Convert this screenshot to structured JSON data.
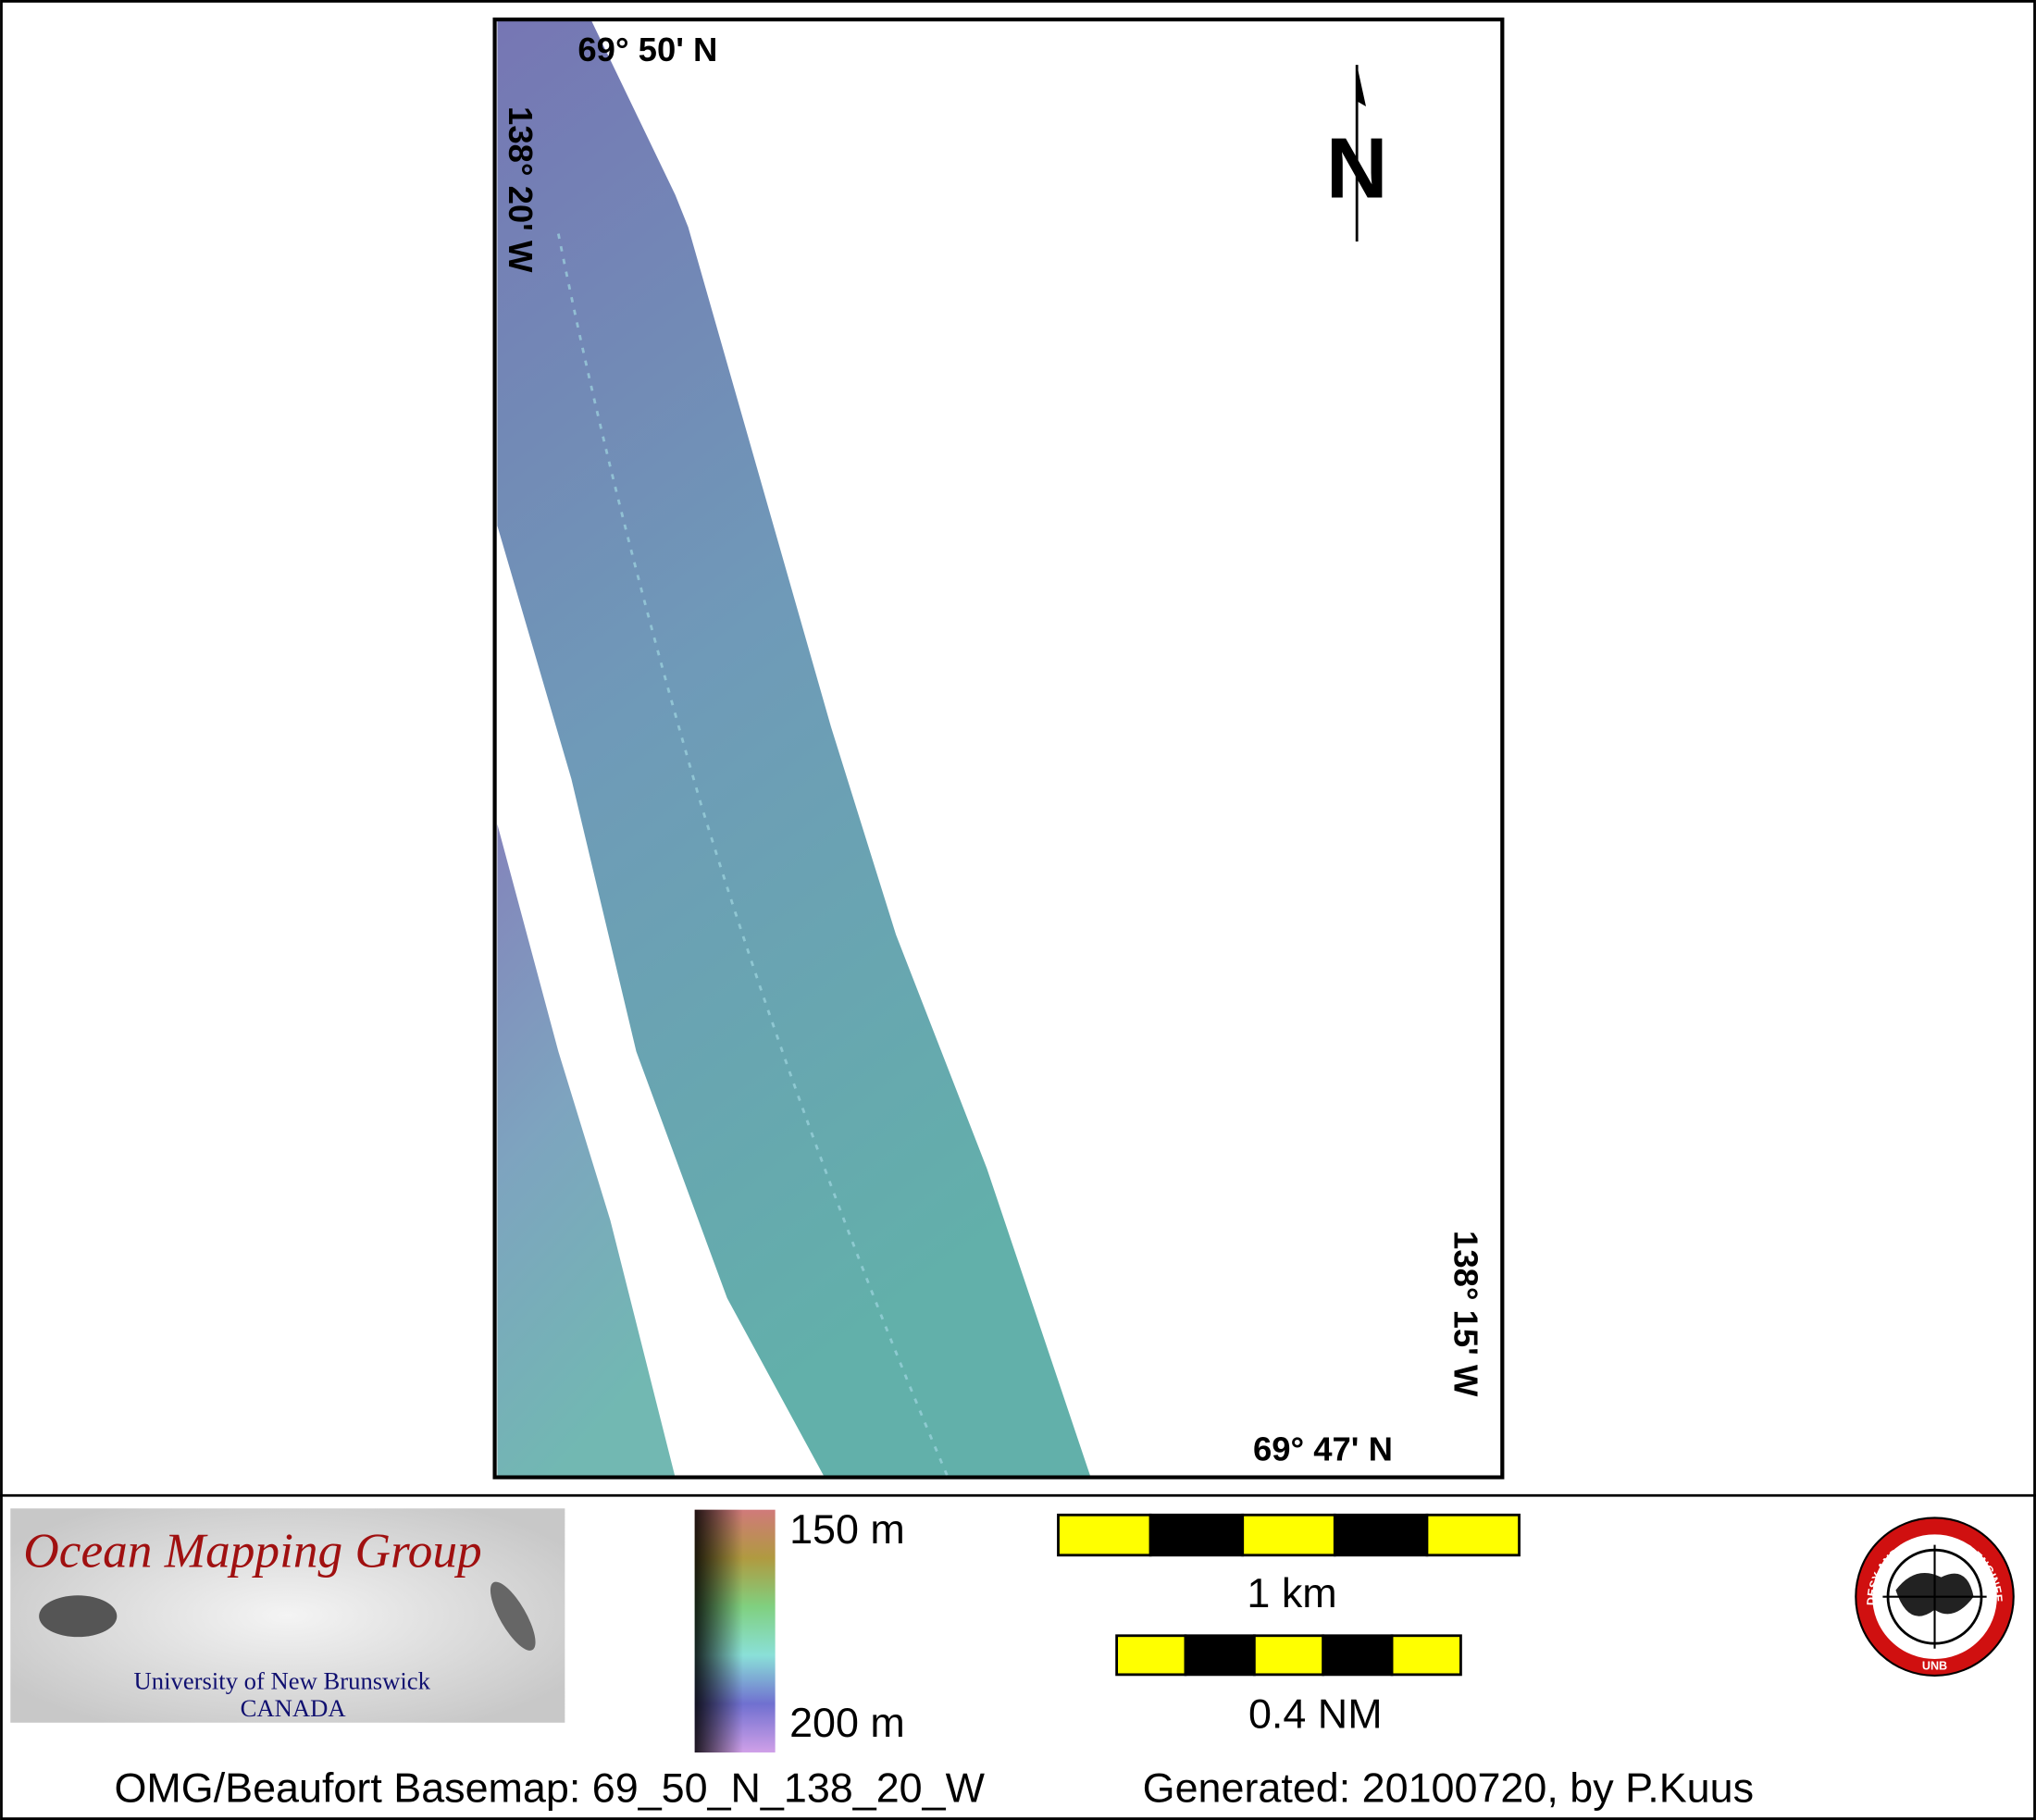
{
  "map": {
    "labels": {
      "top_lat": "69° 50' N",
      "left_lon": "138° 20' W",
      "right_lon": "138° 15' W",
      "bottom_lat": "69° 47' N",
      "north": "N"
    },
    "logo": {
      "title": "Ocean Mapping Group",
      "university": "University of New Brunswick",
      "country": "CANADA",
      "seal_text": "GEODESY AND GEOMATICS ENGINEERING",
      "seal_abbr": "UNB"
    },
    "depth_legend": {
      "top": "150 m",
      "bottom": "200 m"
    },
    "scale_bars": {
      "metric": "1 km",
      "nautical": "0.4 NM"
    },
    "footer": {
      "basemap": "OMG/Beaufort Basemap: 69_50_N_138_20_W",
      "generated": "Generated: 20100720, by P.Kuus"
    }
  }
}
